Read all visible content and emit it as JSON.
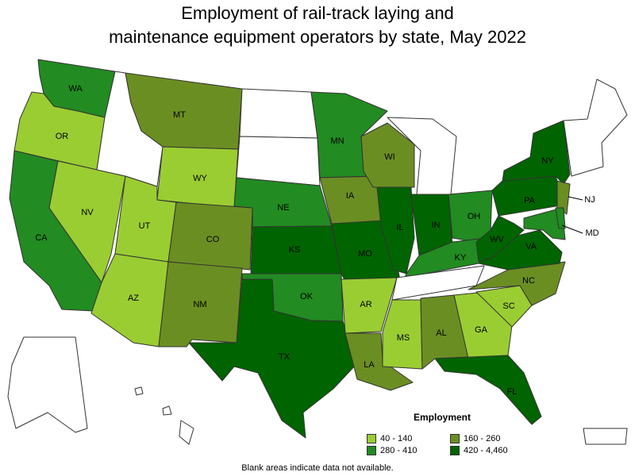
{
  "title_line1": "Employment of rail-track laying and",
  "title_line2": "maintenance equipment operators by state, May 2022",
  "legend": {
    "title": "Employment",
    "items": [
      {
        "label": "40 - 140",
        "color": "#9acd32"
      },
      {
        "label": "160 - 260",
        "color": "#6b8e23"
      },
      {
        "label": "280 - 410",
        "color": "#228b22"
      },
      {
        "label": "420 - 4,460",
        "color": "#006400"
      }
    ]
  },
  "note": "Blank areas indicate data not available.",
  "colors": {
    "no_data": "#ffffff",
    "border": "#333333"
  },
  "states": {
    "WA": {
      "label": "WA",
      "bin": 2
    },
    "OR": {
      "label": "OR",
      "bin": 0
    },
    "CA": {
      "label": "CA",
      "bin": 2
    },
    "NV": {
      "label": "NV",
      "bin": 0
    },
    "ID": {
      "label": "",
      "bin": null
    },
    "MT": {
      "label": "MT",
      "bin": 1
    },
    "WY": {
      "label": "WY",
      "bin": 0
    },
    "UT": {
      "label": "UT",
      "bin": 0
    },
    "AZ": {
      "label": "AZ",
      "bin": 0
    },
    "CO": {
      "label": "CO",
      "bin": 1
    },
    "NM": {
      "label": "NM",
      "bin": 1
    },
    "ND": {
      "label": "",
      "bin": null
    },
    "SD": {
      "label": "",
      "bin": null
    },
    "NE": {
      "label": "NE",
      "bin": 2
    },
    "KS": {
      "label": "KS",
      "bin": 3
    },
    "OK": {
      "label": "OK",
      "bin": 2
    },
    "TX": {
      "label": "TX",
      "bin": 3
    },
    "MN": {
      "label": "MN",
      "bin": 2
    },
    "IA": {
      "label": "IA",
      "bin": 1
    },
    "MO": {
      "label": "MO",
      "bin": 3
    },
    "AR": {
      "label": "AR",
      "bin": 0
    },
    "LA": {
      "label": "LA",
      "bin": 1
    },
    "WI": {
      "label": "WI",
      "bin": 1
    },
    "IL": {
      "label": "IL",
      "bin": 3
    },
    "MI": {
      "label": "",
      "bin": null
    },
    "IN": {
      "label": "IN",
      "bin": 3
    },
    "OH": {
      "label": "OH",
      "bin": 2
    },
    "KY": {
      "label": "KY",
      "bin": 2
    },
    "TN": {
      "label": "",
      "bin": null
    },
    "MS": {
      "label": "MS",
      "bin": 0
    },
    "AL": {
      "label": "AL",
      "bin": 1
    },
    "GA": {
      "label": "GA",
      "bin": 0
    },
    "FL": {
      "label": "FL",
      "bin": 3
    },
    "SC": {
      "label": "SC",
      "bin": 0
    },
    "NC": {
      "label": "NC",
      "bin": 1
    },
    "VA": {
      "label": "VA",
      "bin": 3
    },
    "WV": {
      "label": "WV",
      "bin": 3
    },
    "PA": {
      "label": "PA",
      "bin": 3
    },
    "NY": {
      "label": "NY",
      "bin": 3
    },
    "NJ": {
      "label": "NJ",
      "bin": 1
    },
    "MD": {
      "label": "MD",
      "bin": 2
    },
    "DE": {
      "label": "",
      "bin": 2
    },
    "NE_STATES": {
      "label": "",
      "bin": null
    },
    "AK": {
      "label": "",
      "bin": null
    },
    "HI": {
      "label": "",
      "bin": null
    },
    "PR": {
      "label": "",
      "bin": null
    }
  }
}
